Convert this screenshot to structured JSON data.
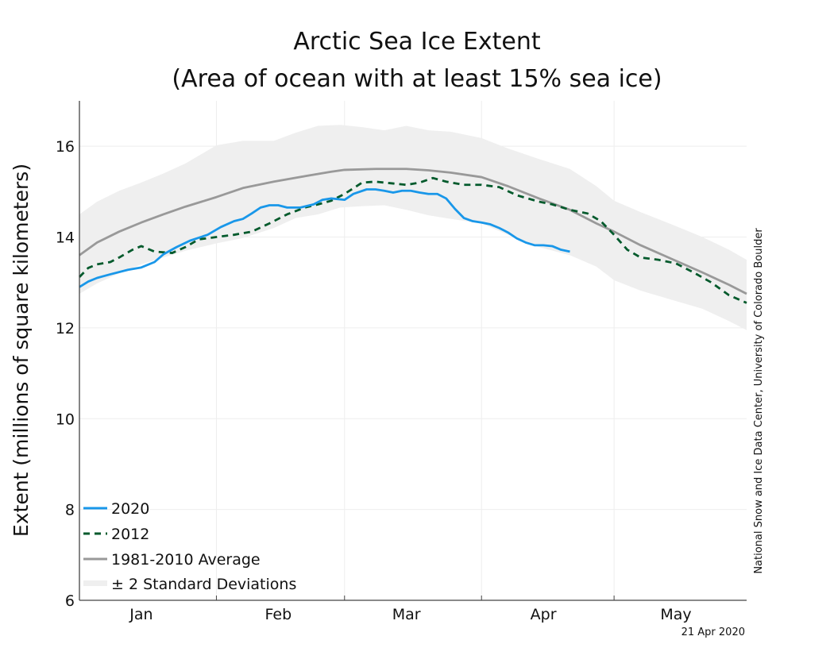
{
  "chart_data": {
    "type": "line",
    "title": "Arctic Sea Ice Extent",
    "subtitle": "(Area of ocean with at least 15% sea ice)",
    "xlabel": "",
    "ylabel": "Extent (millions of square kilometers)",
    "xlim_day_of_year": [
      1,
      152
    ],
    "ylim": [
      6,
      17
    ],
    "yticks": [
      6,
      8,
      10,
      12,
      14,
      16
    ],
    "ytick_labels": [
      "6",
      "8",
      "10",
      "12",
      "14",
      "16"
    ],
    "month_labels": [
      {
        "label": "Jan",
        "center_day": 15
      },
      {
        "label": "Feb",
        "center_day": 46
      },
      {
        "label": "Mar",
        "center_day": 75
      },
      {
        "label": "Apr",
        "center_day": 106
      },
      {
        "label": "May",
        "center_day": 136
      }
    ],
    "month_boundaries_day": [
      32,
      61,
      92,
      122
    ],
    "grid": true,
    "legend_position": "bottom-left",
    "credit": "National Snow and Ice Data Center, University of Colorado Boulder",
    "date_stamp": "21 Apr 2020",
    "std_band": {
      "name": "± 2 Standard Deviations",
      "color": "#efefef",
      "x": [
        1,
        5,
        10,
        15,
        20,
        25,
        32,
        38,
        45,
        50,
        55,
        60,
        65,
        70,
        75,
        80,
        85,
        92,
        98,
        105,
        112,
        118,
        122,
        128,
        135,
        142,
        148,
        152
      ],
      "upper": [
        14.5,
        14.78,
        15.02,
        15.2,
        15.4,
        15.62,
        16.02,
        16.12,
        16.12,
        16.3,
        16.45,
        16.47,
        16.42,
        16.35,
        16.45,
        16.35,
        16.32,
        16.18,
        15.95,
        15.72,
        15.5,
        15.12,
        14.8,
        14.55,
        14.28,
        14.0,
        13.72,
        13.5
      ],
      "lower": [
        12.75,
        12.98,
        13.2,
        13.4,
        13.55,
        13.7,
        13.86,
        13.98,
        14.2,
        14.42,
        14.5,
        14.65,
        14.68,
        14.7,
        14.6,
        14.48,
        14.4,
        14.3,
        14.05,
        13.78,
        13.6,
        13.35,
        13.05,
        12.82,
        12.62,
        12.42,
        12.15,
        11.95
      ]
    },
    "series": [
      {
        "name": "1981-2010 Average",
        "color": "#999999",
        "dash": "solid",
        "x": [
          1,
          5,
          10,
          15,
          20,
          25,
          32,
          38,
          45,
          52,
          58,
          61,
          68,
          75,
          80,
          85,
          92,
          98,
          105,
          112,
          118,
          122,
          128,
          135,
          142,
          148,
          152
        ],
        "y": [
          13.6,
          13.88,
          14.12,
          14.32,
          14.5,
          14.67,
          14.88,
          15.08,
          15.22,
          15.34,
          15.44,
          15.48,
          15.5,
          15.5,
          15.47,
          15.42,
          15.32,
          15.12,
          14.85,
          14.6,
          14.3,
          14.12,
          13.82,
          13.52,
          13.22,
          12.95,
          12.75
        ]
      },
      {
        "name": "2012",
        "color": "#035a2c",
        "dash": "dashed",
        "x": [
          1,
          3,
          5,
          8,
          10,
          13,
          15,
          18,
          22,
          25,
          28,
          32,
          36,
          40,
          44,
          48,
          52,
          55,
          58,
          61,
          65,
          68,
          72,
          75,
          78,
          81,
          84,
          88,
          92,
          96,
          100,
          105,
          108,
          112,
          116,
          119,
          122,
          125,
          128,
          132,
          136,
          140,
          144,
          148,
          152
        ],
        "y": [
          13.12,
          13.32,
          13.4,
          13.45,
          13.55,
          13.72,
          13.8,
          13.68,
          13.65,
          13.78,
          13.95,
          14.0,
          14.05,
          14.12,
          14.3,
          14.5,
          14.65,
          14.72,
          14.8,
          14.95,
          15.2,
          15.22,
          15.18,
          15.15,
          15.2,
          15.3,
          15.22,
          15.15,
          15.15,
          15.1,
          14.92,
          14.78,
          14.72,
          14.6,
          14.52,
          14.35,
          14.05,
          13.72,
          13.55,
          13.5,
          13.42,
          13.22,
          13.0,
          12.72,
          12.55
        ]
      },
      {
        "name": "2020",
        "color": "#1997e9",
        "dash": "solid",
        "x": [
          1,
          3,
          5,
          8,
          12,
          15,
          18,
          20,
          23,
          26,
          30,
          33,
          36,
          38,
          40,
          42,
          44,
          46,
          48,
          51,
          54,
          56,
          58,
          61,
          63,
          66,
          68,
          70,
          72,
          74,
          76,
          78,
          80,
          82,
          84,
          86,
          88,
          90,
          92,
          94,
          96,
          98,
          100,
          102,
          104,
          106,
          108,
          110,
          112
        ],
        "y": [
          12.9,
          13.02,
          13.1,
          13.18,
          13.28,
          13.33,
          13.45,
          13.62,
          13.78,
          13.92,
          14.05,
          14.22,
          14.35,
          14.4,
          14.52,
          14.65,
          14.7,
          14.7,
          14.65,
          14.65,
          14.72,
          14.82,
          14.85,
          14.82,
          14.95,
          15.05,
          15.05,
          15.02,
          14.98,
          15.02,
          15.02,
          14.98,
          14.95,
          14.95,
          14.85,
          14.62,
          14.42,
          14.35,
          14.32,
          14.28,
          14.2,
          14.1,
          13.97,
          13.88,
          13.82,
          13.82,
          13.8,
          13.72,
          13.68
        ]
      }
    ]
  }
}
